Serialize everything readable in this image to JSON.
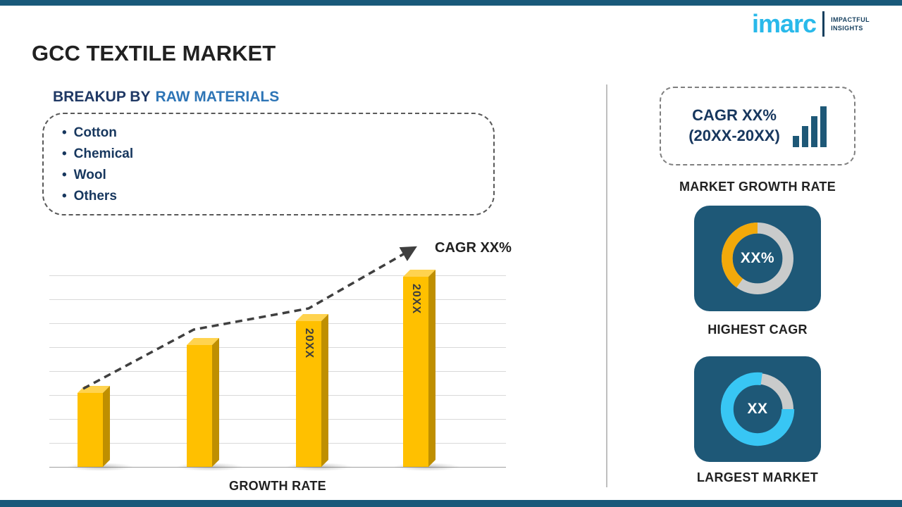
{
  "header": {
    "title": "GCC TEXTILE MARKET",
    "logo": {
      "brand": "imarc",
      "tagline1": "IMPACTFUL",
      "tagline2": "INSIGHTS"
    }
  },
  "breakup": {
    "heading_prefix": "BREAKUP BY",
    "heading_highlight": "RAW MATERIALS",
    "items": [
      "Cotton",
      "Chemical",
      "Wool",
      "Others"
    ]
  },
  "chart_data": {
    "type": "bar",
    "title": "",
    "xlabel": "GROWTH RATE",
    "ylabel": "",
    "categories": [
      "",
      "",
      "20XX",
      "20XX"
    ],
    "values": [
      25,
      41,
      49,
      64
    ],
    "ylim": [
      0,
      70
    ],
    "grid": true,
    "bar_color": "#FFC000",
    "trend_label": "CAGR XX%",
    "trend_style": "dashed-arrow-ascending"
  },
  "sidebar": {
    "growth_rate_box": {
      "line1": "CAGR XX%",
      "line2": "(20XX-20XX)",
      "icon": "bar-chart-icon"
    },
    "growth_rate_label": "MARKET GROWTH RATE",
    "highest_cagr": {
      "center_text": "XX%",
      "label": "HIGHEST CAGR",
      "percent": 40,
      "arc_color": "#F2A90A",
      "ring_color": "#C9CBCB"
    },
    "largest_market": {
      "center_text": "XX",
      "label": "LARGEST MARKET",
      "percent": 77,
      "arc_color": "#38C6F4",
      "ring_color": "#C9CBCB"
    }
  },
  "colors": {
    "accent_strip": "#19597A",
    "card_background": "#1E5877",
    "navy_text": "#17375E",
    "highlight_blue": "#2E75B6",
    "bar_yellow": "#FFC000",
    "logo_cyan": "#29B9EA"
  }
}
